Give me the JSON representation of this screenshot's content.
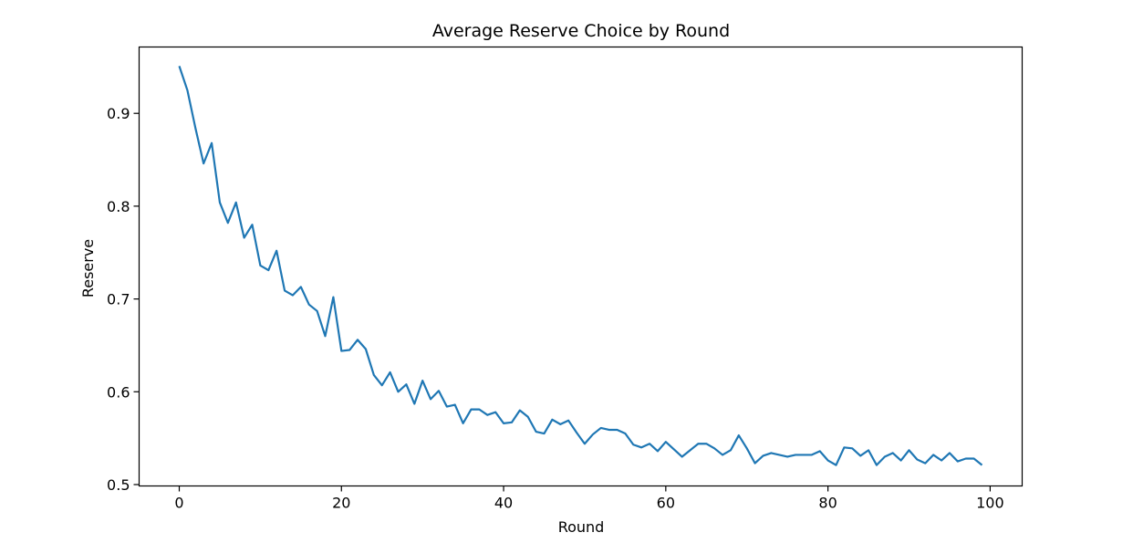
{
  "chart_data": {
    "type": "line",
    "title": "Average Reserve Choice by Round",
    "xlabel": "Round",
    "ylabel": "Reserve",
    "xlim": [
      -4.95,
      103.95
    ],
    "ylim": [
      0.4985,
      0.9715
    ],
    "xticks": [
      0,
      20,
      40,
      60,
      80,
      100
    ],
    "xtick_labels": [
      "0",
      "20",
      "40",
      "60",
      "80",
      "100"
    ],
    "yticks": [
      0.5,
      0.6,
      0.7,
      0.8,
      0.9
    ],
    "ytick_labels": [
      "0.5",
      "0.6",
      "0.7",
      "0.8",
      "0.9"
    ],
    "grid": false,
    "legend": "none",
    "series": [
      {
        "color": "#1f77b4",
        "x": [
          0,
          1,
          2,
          3,
          4,
          5,
          6,
          7,
          8,
          9,
          10,
          11,
          12,
          13,
          14,
          15,
          16,
          17,
          18,
          19,
          20,
          21,
          22,
          23,
          24,
          25,
          26,
          27,
          28,
          29,
          30,
          31,
          32,
          33,
          34,
          35,
          36,
          37,
          38,
          39,
          40,
          41,
          42,
          43,
          44,
          45,
          46,
          47,
          48,
          49,
          50,
          51,
          52,
          53,
          54,
          55,
          56,
          57,
          58,
          59,
          60,
          61,
          62,
          63,
          64,
          65,
          66,
          67,
          68,
          69,
          70,
          71,
          72,
          73,
          74,
          75,
          76,
          77,
          78,
          79,
          80,
          81,
          82,
          83,
          84,
          85,
          86,
          87,
          88,
          89,
          90,
          91,
          92,
          93,
          94,
          95,
          96,
          97,
          98,
          99
        ],
        "values": [
          0.951,
          0.925,
          0.884,
          0.846,
          0.868,
          0.804,
          0.782,
          0.804,
          0.766,
          0.78,
          0.736,
          0.731,
          0.752,
          0.709,
          0.704,
          0.713,
          0.694,
          0.687,
          0.66,
          0.702,
          0.644,
          0.645,
          0.656,
          0.646,
          0.618,
          0.607,
          0.621,
          0.6,
          0.608,
          0.587,
          0.612,
          0.592,
          0.601,
          0.584,
          0.586,
          0.566,
          0.581,
          0.581,
          0.575,
          0.578,
          0.566,
          0.567,
          0.58,
          0.573,
          0.557,
          0.555,
          0.57,
          0.565,
          0.569,
          0.556,
          0.544,
          0.554,
          0.561,
          0.559,
          0.559,
          0.555,
          0.543,
          0.54,
          0.544,
          0.536,
          0.546,
          0.538,
          0.53,
          0.537,
          0.544,
          0.544,
          0.539,
          0.532,
          0.537,
          0.553,
          0.539,
          0.523,
          0.531,
          0.534,
          0.532,
          0.53,
          0.532,
          0.532,
          0.532,
          0.536,
          0.526,
          0.521,
          0.54,
          0.539,
          0.531,
          0.537,
          0.521,
          0.53,
          0.534,
          0.526,
          0.537,
          0.527,
          0.523,
          0.532,
          0.526,
          0.534,
          0.525,
          0.528,
          0.528,
          0.521
        ]
      }
    ]
  }
}
